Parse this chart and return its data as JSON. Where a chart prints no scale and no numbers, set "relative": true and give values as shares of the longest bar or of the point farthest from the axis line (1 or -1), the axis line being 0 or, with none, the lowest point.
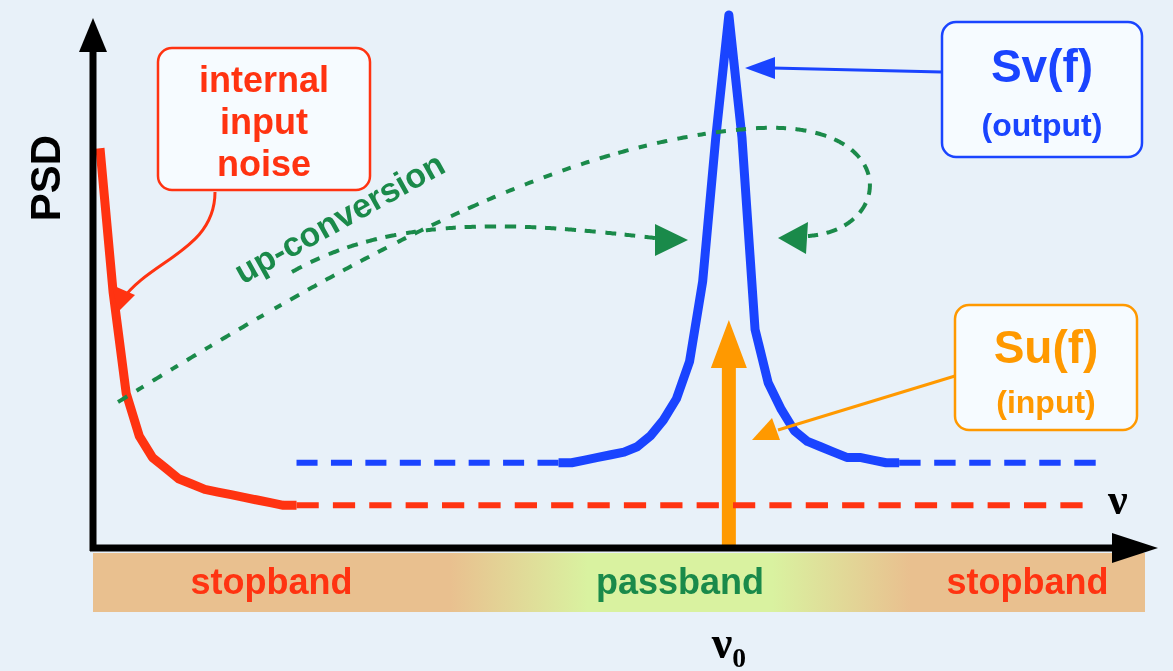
{
  "chart_data": {
    "type": "line",
    "relative": true,
    "legend": "top right",
    "xlabel": "ν",
    "ylabel": "PSD",
    "annotations": [
      "up-conversion",
      "ν₀",
      "Su(f)\n(input)",
      "stopband",
      "passband",
      "stopband"
    ],
    "categories": [
      null,
      null,
      null,
      null,
      null,
      null,
      null,
      null,
      null,
      null,
      null,
      null,
      null,
      null,
      null,
      null,
      null,
      null,
      null,
      null,
      null,
      null,
      null,
      null,
      null,
      null,
      null,
      null,
      null,
      null,
      null,
      null,
      null,
      null,
      null,
      null,
      null,
      null,
      null,
      null,
      null,
      null,
      null,
      null,
      null,
      null,
      null,
      null,
      null,
      null,
      null,
      null,
      null,
      null,
      null,
      null,
      null,
      null,
      null,
      null,
      null,
      null,
      null,
      null,
      null,
      null,
      null,
      null,
      null,
      null,
      null,
      null,
      null,
      null,
      null,
      null,
      null,
      null,
      null,
      null
    ],
    "series": [
      {
        "name": "internal\ninput\nnoise",
        "color": "#ff3311",
        "line_style": "solid",
        "values": [
          0.75,
          0.48,
          0.29,
          0.21,
          0.17,
          0.15,
          0.13,
          0.12,
          0.11,
          0.105,
          0.1,
          0.095,
          0.09,
          0.085,
          0.08,
          0.08,
          null,
          null,
          null,
          null,
          null,
          null,
          null,
          null,
          null,
          null,
          null,
          null,
          null,
          null,
          null,
          null,
          null,
          null,
          null,
          null,
          null,
          null,
          null,
          null,
          null,
          null,
          null,
          null,
          null,
          null,
          null,
          null,
          null,
          null,
          null,
          null,
          null,
          null,
          null,
          null,
          null,
          null,
          null,
          null,
          null,
          null,
          null,
          null,
          null,
          null,
          null,
          null,
          null,
          null,
          null,
          null,
          null,
          null,
          null,
          null,
          null,
          null,
          null,
          null
        ]
      },
      {
        "color": "#ff3311",
        "line_style": "dashed",
        "values": [
          null,
          null,
          null,
          null,
          null,
          null,
          null,
          null,
          null,
          null,
          null,
          null,
          null,
          null,
          null,
          0.08,
          0.08,
          0.08,
          0.08,
          0.08,
          0.08,
          0.08,
          0.08,
          0.08,
          0.08,
          0.08,
          0.08,
          0.08,
          0.08,
          0.08,
          0.08,
          0.08,
          0.08,
          0.08,
          0.08,
          0.08,
          0.08,
          0.08,
          0.08,
          0.08,
          0.08,
          0.08,
          0.08,
          0.08,
          0.08,
          0.08,
          0.08,
          0.08,
          0.08,
          0.08,
          0.08,
          0.08,
          0.08,
          0.08,
          0.08,
          0.08,
          0.08,
          0.08,
          0.08,
          0.08,
          0.08,
          0.08,
          0.08,
          0.08,
          0.08,
          0.08,
          0.08,
          0.08,
          0.08,
          0.08,
          0.08,
          0.08,
          0.08,
          0.08,
          0.08,
          0.08,
          null,
          null,
          null,
          null
        ]
      },
      {
        "color": "#1a44ff",
        "line_style": "dashed",
        "values": [
          null,
          null,
          null,
          null,
          null,
          null,
          null,
          null,
          null,
          null,
          null,
          null,
          null,
          null,
          null,
          0.16,
          0.16,
          0.16,
          0.16,
          0.16,
          0.16,
          0.16,
          0.16,
          0.16,
          0.16,
          0.16,
          0.16,
          0.16,
          0.16,
          0.16,
          0.16,
          0.16,
          0.16,
          0.16,
          0.16,
          0.16,
          null,
          null,
          null,
          null,
          null,
          null,
          null,
          null,
          null,
          null,
          null,
          null,
          null,
          null,
          null,
          null,
          null,
          null,
          null,
          null,
          null,
          null,
          null,
          null,
          null,
          null,
          null,
          null,
          null,
          null,
          null,
          null,
          null,
          null,
          null,
          null,
          null,
          null,
          null,
          null,
          null,
          null,
          null,
          null
        ]
      },
      {
        "name": "Sv(f)\n(output)",
        "color": "#1a44ff",
        "line_style": "solid",
        "values": [
          null,
          null,
          null,
          null,
          null,
          null,
          null,
          null,
          null,
          null,
          null,
          null,
          null,
          null,
          null,
          null,
          null,
          null,
          null,
          null,
          null,
          null,
          null,
          null,
          null,
          null,
          null,
          null,
          null,
          null,
          null,
          null,
          null,
          null,
          null,
          0.16,
          0.16,
          0.165,
          0.17,
          0.175,
          0.18,
          0.19,
          0.21,
          0.24,
          0.28,
          0.35,
          0.5,
          0.77,
          1,
          0.77,
          0.41,
          0.31,
          0.26,
          0.22,
          0.2,
          0.19,
          0.18,
          0.17,
          0.17,
          0.165,
          0.16,
          0.16,
          null,
          null,
          null,
          null,
          null,
          null,
          null,
          null,
          null,
          null,
          null,
          null,
          null,
          null,
          null,
          null,
          null,
          null
        ]
      },
      {
        "color": "#1a44ff",
        "line_style": "dashed",
        "values": [
          null,
          null,
          null,
          null,
          null,
          null,
          null,
          null,
          null,
          null,
          null,
          null,
          null,
          null,
          null,
          null,
          null,
          null,
          null,
          null,
          null,
          null,
          null,
          null,
          null,
          null,
          null,
          null,
          null,
          null,
          null,
          null,
          null,
          null,
          null,
          null,
          null,
          null,
          null,
          null,
          null,
          null,
          null,
          null,
          null,
          null,
          null,
          null,
          null,
          null,
          null,
          null,
          null,
          null,
          null,
          null,
          null,
          null,
          null,
          null,
          null,
          0.16,
          0.16,
          0.16,
          0.16,
          0.16,
          0.16,
          0.16,
          0.16,
          0.16,
          0.16,
          0.16,
          0.16,
          0.16,
          0.16,
          0.16,
          0.16,
          null,
          null,
          null
        ]
      }
    ]
  }
}
